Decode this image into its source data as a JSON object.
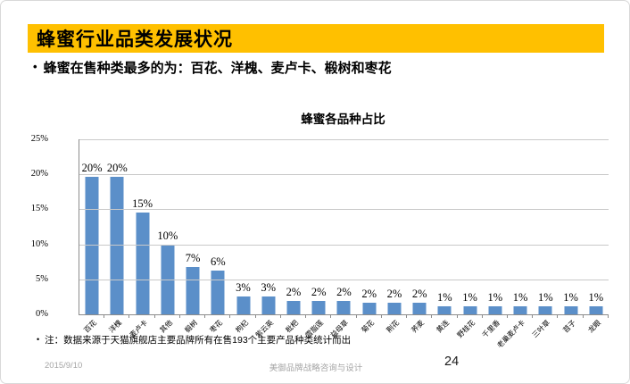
{
  "slide": {
    "title": "蜂蜜行业品类发展状况",
    "bullet_marker": "•",
    "bullet": "蜂蜜在售种类最多的为：百花、洋槐、麦卢卡、椴树和枣花",
    "note": "注：数据来源于天猫旗舰店主要品牌所有在售193个主要产品种类统计而出",
    "footer": {
      "date": "2015/9/10",
      "company": "美御品牌战略咨询与设计",
      "page_number": "24"
    },
    "colors": {
      "header_bg": "#FFC000",
      "title_text": "#000000",
      "bar": "#5B8FC9",
      "gridline": "#C9C9C9",
      "axis": "#8C8C8C",
      "footer_text": "#A6A6A6"
    }
  },
  "chart_data": {
    "type": "bar",
    "title": "蜂蜜各品种占比",
    "categories": [
      "百花",
      "洋槐",
      "麦卢卡",
      "其他",
      "椴树",
      "枣花",
      "枸杞",
      "紫云英",
      "枇杷",
      "雪脂莲",
      "益母草",
      "菊花",
      "荆花",
      "荞麦",
      "黄连",
      "野桂花",
      "千里香",
      "老巢麦卢卡",
      "三叶草",
      "苕子",
      "龙眼"
    ],
    "values": [
      20,
      20,
      15,
      10,
      7,
      6,
      3,
      3,
      2,
      2,
      2,
      2,
      2,
      2,
      1,
      1,
      1,
      1,
      1,
      1,
      1
    ],
    "value_labels": [
      "20%",
      "20%",
      "15%",
      "10%",
      "7%",
      "6%",
      "3%",
      "3%",
      "2%",
      "2%",
      "2%",
      "2%",
      "2%",
      "2%",
      "1%",
      "1%",
      "1%",
      "1%",
      "1%",
      "1%",
      "1%"
    ],
    "bar_heights_pct": [
      19.7,
      19.7,
      14.6,
      9.9,
      6.7,
      6.2,
      2.6,
      2.6,
      1.9,
      1.9,
      1.9,
      1.6,
      1.6,
      1.6,
      1.15,
      1.15,
      1.15,
      1.15,
      1.15,
      1.15,
      1.15
    ],
    "ylim": [
      0,
      25
    ],
    "y_tick_labels": [
      "0%",
      "5%",
      "10%",
      "15%",
      "20%",
      "25%"
    ],
    "y_tick_values": [
      0,
      5,
      10,
      15,
      20,
      25
    ],
    "grid": true,
    "legend": "none",
    "xlabel": "",
    "ylabel": ""
  }
}
